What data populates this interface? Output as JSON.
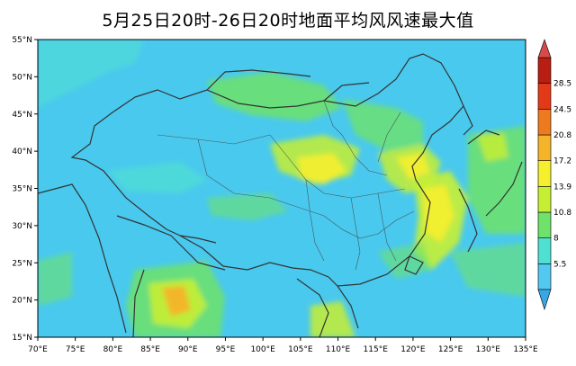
{
  "title": "5月25日20时-26日20时地面平均风风速最大值",
  "map": {
    "lon_ticks": [
      "70°E",
      "75°E",
      "80°E",
      "85°E",
      "90°E",
      "95°E",
      "100°E",
      "105°E",
      "110°E",
      "115°E",
      "120°E",
      "125°E",
      "130°E",
      "135°E"
    ],
    "lat_ticks": [
      "15°N",
      "20°N",
      "25°N",
      "30°N",
      "35°N",
      "40°N",
      "45°N",
      "50°N",
      "55°N"
    ],
    "lon_range": [
      70,
      135
    ],
    "lat_range": [
      15,
      55
    ]
  },
  "colorbar": {
    "labels": [
      "5.5",
      "8",
      "10.8",
      "13.9",
      "17.2",
      "20.8",
      "24.5",
      "28.5"
    ],
    "colors": [
      "#53c8f0",
      "#4fe0d2",
      "#6ee26a",
      "#c6ef34",
      "#f6ef2e",
      "#f5b32a",
      "#ee7a20",
      "#e23a18",
      "#b81e12"
    ],
    "bottom_arrow_color": "#3aa6e6",
    "top_arrow_color": "#d84a4a"
  }
}
